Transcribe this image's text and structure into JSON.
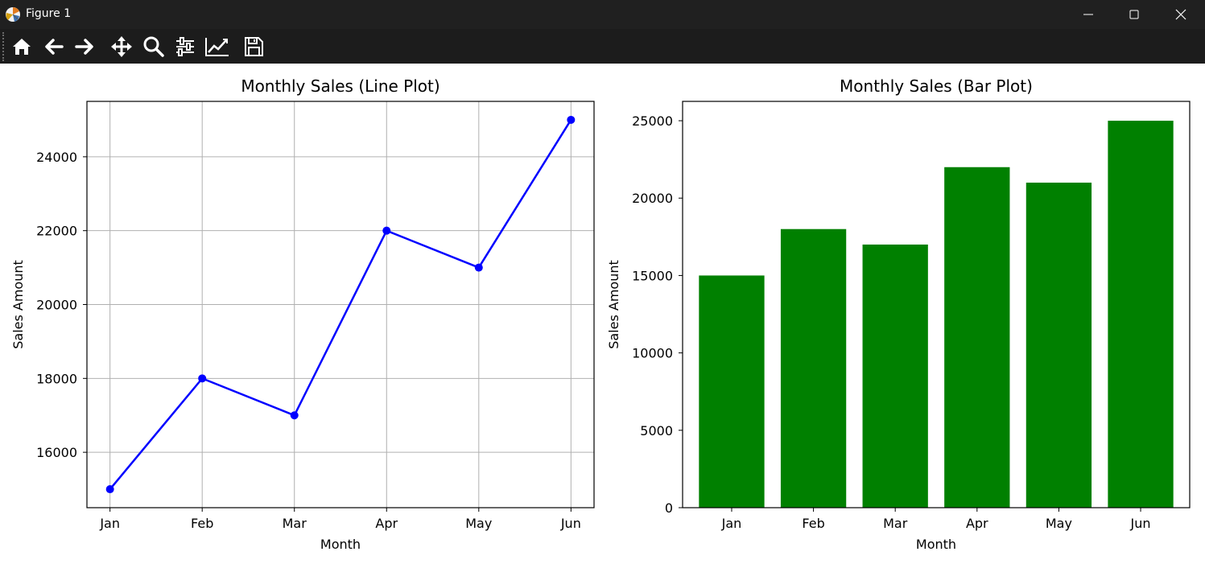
{
  "window": {
    "title": "Figure 1",
    "controls": [
      "minimize-icon",
      "maximize-icon",
      "close-icon"
    ]
  },
  "toolbar": {
    "tools": [
      {
        "name": "home-button",
        "icon": "home-icon"
      },
      {
        "name": "back-button",
        "icon": "arrow-left-icon"
      },
      {
        "name": "forward-button",
        "icon": "arrow-right-icon"
      },
      {
        "name": "pan-button",
        "icon": "move-icon"
      },
      {
        "name": "zoom-button",
        "icon": "magnifier-icon"
      },
      {
        "name": "subplots-button",
        "icon": "sliders-icon"
      },
      {
        "name": "customize-button",
        "icon": "line-chart-icon"
      },
      {
        "name": "save-button",
        "icon": "floppy-disk-icon"
      }
    ]
  },
  "colors": {
    "line": "#0000ff",
    "bar": "#008000",
    "grid": "#b0b0b0",
    "titlebar": "#202020",
    "toolbar": "#1c1c1c"
  },
  "chart_data": [
    {
      "type": "line",
      "title": "Monthly Sales (Line Plot)",
      "xlabel": "Month",
      "ylabel": "Sales Amount",
      "categories": [
        "Jan",
        "Feb",
        "Mar",
        "Apr",
        "May",
        "Jun"
      ],
      "values": [
        15000,
        18000,
        17000,
        22000,
        21000,
        25000
      ],
      "ylim": [
        14500,
        25500
      ],
      "yticks": [
        16000,
        18000,
        20000,
        22000,
        24000
      ],
      "grid": true,
      "marker": "circle"
    },
    {
      "type": "bar",
      "title": "Monthly Sales (Bar Plot)",
      "xlabel": "Month",
      "ylabel": "Sales Amount",
      "categories": [
        "Jan",
        "Feb",
        "Mar",
        "Apr",
        "May",
        "Jun"
      ],
      "values": [
        15000,
        18000,
        17000,
        22000,
        21000,
        25000
      ],
      "ylim": [
        0,
        26250
      ],
      "yticks": [
        0,
        5000,
        10000,
        15000,
        20000,
        25000
      ],
      "grid": false
    }
  ]
}
